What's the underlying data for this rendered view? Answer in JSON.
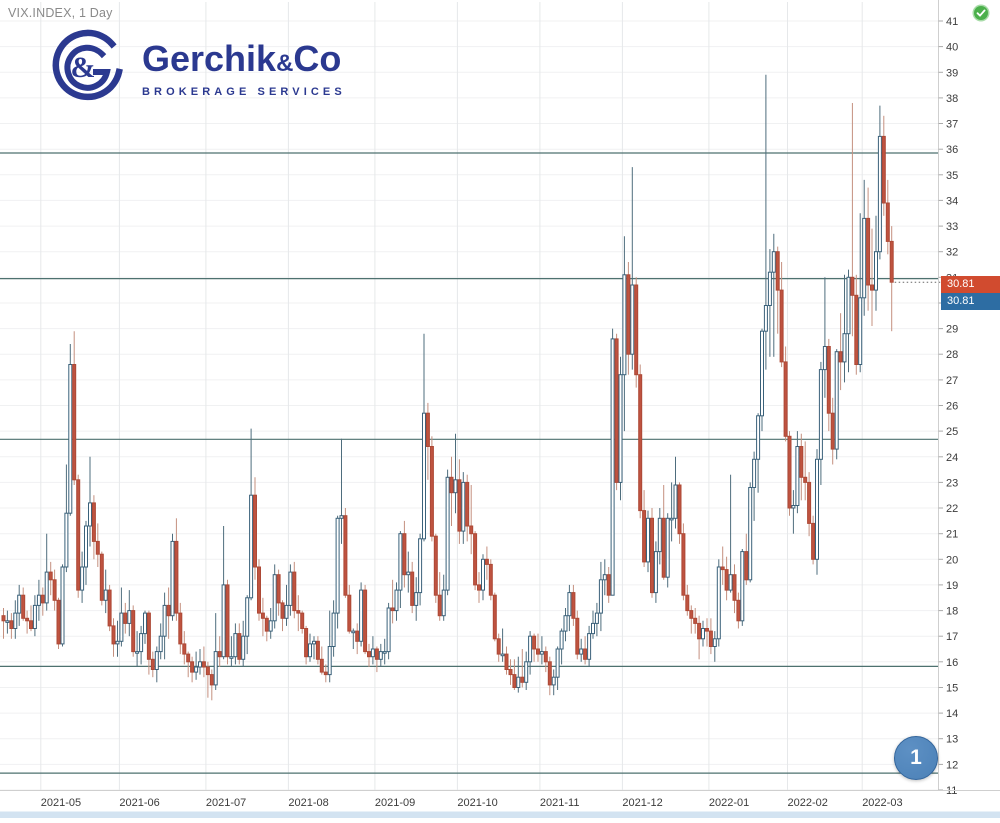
{
  "header": {
    "symbol_title": "VIX.INDEX, 1 Day"
  },
  "logo": {
    "name_main": "Gerchik",
    "name_amp": "&",
    "name_co": "Co",
    "subtitle": "BROKERAGE SERVICES",
    "color": "#2b3990"
  },
  "status": {
    "icon": "check-circle",
    "bg": "#4bb04b",
    "ring": "#a9dca9"
  },
  "marker": {
    "label": "1",
    "bg": "#4c81b7",
    "border": "#33659b"
  },
  "price_labels": {
    "upper": {
      "value": "30.81",
      "bg": "#d14b2f"
    },
    "lower": {
      "value": "30.81",
      "bg": "#2d6da3"
    }
  },
  "colors": {
    "grid_h": "#f0f1f2",
    "grid_v": "#e6e8ea",
    "level_line": "#4d716f",
    "bear_fill": "#bf5340",
    "bear_stroke": "#ad4936",
    "bear_wick": "#c4907f",
    "bull_fill": "#ffffff",
    "bull_stroke": "#3a617a",
    "bull_wick": "#4e6d7d",
    "axis_text": "#3c3c3c",
    "separator": "#cfcfcf",
    "dotted_line": "#666666",
    "bottom_strip": "#d3e3f1"
  },
  "chart_data": {
    "type": "candlestick",
    "symbol": "VIX.INDEX",
    "timeframe": "1 Day",
    "last_price": 30.81,
    "y_axis": {
      "min": 11,
      "max": 41,
      "step": 1
    },
    "x_labels": [
      "2021-05",
      "2021-06",
      "2021-07",
      "2021-08",
      "2021-09",
      "2021-10",
      "2021-11",
      "2021-12",
      "2022-01",
      "2022-02",
      "2022-03"
    ],
    "month_start_indices": [
      10,
      30,
      52,
      73,
      95,
      116,
      137,
      158,
      180,
      200,
      219
    ],
    "levels": [
      35.85,
      30.95,
      24.68,
      15.82,
      11.66
    ],
    "candles": [
      [
        17.8,
        18.1,
        16.9,
        17.6
      ],
      [
        17.6,
        18.0,
        17.1,
        17.6
      ],
      [
        17.6,
        17.9,
        16.9,
        17.3
      ],
      [
        17.3,
        18.4,
        16.9,
        17.9
      ],
      [
        17.9,
        19.0,
        17.4,
        18.6
      ],
      [
        18.6,
        18.9,
        17.6,
        17.7
      ],
      [
        17.7,
        18.0,
        17.1,
        17.6
      ],
      [
        17.6,
        18.2,
        17.2,
        17.3
      ],
      [
        17.3,
        18.6,
        17.0,
        18.2
      ],
      [
        18.2,
        19.2,
        17.6,
        18.6
      ],
      [
        18.6,
        18.9,
        17.8,
        18.3
      ],
      [
        18.3,
        21.0,
        18.0,
        19.5
      ],
      [
        19.5,
        19.9,
        18.6,
        19.2
      ],
      [
        19.2,
        19.6,
        18.0,
        18.4
      ],
      [
        18.4,
        18.5,
        16.5,
        16.7
      ],
      [
        16.7,
        19.8,
        16.6,
        19.7
      ],
      [
        19.7,
        23.7,
        19.5,
        21.8
      ],
      [
        21.8,
        28.4,
        21.7,
        27.6
      ],
      [
        27.6,
        28.9,
        22.9,
        23.1
      ],
      [
        23.1,
        23.3,
        18.5,
        18.8
      ],
      [
        18.8,
        20.3,
        18.3,
        19.7
      ],
      [
        19.7,
        21.5,
        19.0,
        21.3
      ],
      [
        21.3,
        24.0,
        20.5,
        22.2
      ],
      [
        22.2,
        22.5,
        20.0,
        20.7
      ],
      [
        20.7,
        21.4,
        19.7,
        20.2
      ],
      [
        20.2,
        20.3,
        18.2,
        18.4
      ],
      [
        18.4,
        19.6,
        17.9,
        18.8
      ],
      [
        18.8,
        19.0,
        17.2,
        17.4
      ],
      [
        17.4,
        17.7,
        16.2,
        16.7
      ],
      [
        16.7,
        17.6,
        16.2,
        16.8
      ],
      [
        16.8,
        18.9,
        16.6,
        17.9
      ],
      [
        17.9,
        18.3,
        17.1,
        17.5
      ],
      [
        17.5,
        18.8,
        17.0,
        18.0
      ],
      [
        18.0,
        18.2,
        16.2,
        16.4
      ],
      [
        16.4,
        17.2,
        15.8,
        16.4
      ],
      [
        16.4,
        17.4,
        15.9,
        17.1
      ],
      [
        17.1,
        18.0,
        16.7,
        17.9
      ],
      [
        17.9,
        18.0,
        15.5,
        16.1
      ],
      [
        16.1,
        16.4,
        15.4,
        15.7
      ],
      [
        15.7,
        16.6,
        15.2,
        16.4
      ],
      [
        16.4,
        17.5,
        16.1,
        17.0
      ],
      [
        17.0,
        18.7,
        16.1,
        18.2
      ],
      [
        18.2,
        18.9,
        16.9,
        17.8
      ],
      [
        17.8,
        21.0,
        17.6,
        20.7
      ],
      [
        20.7,
        21.6,
        17.6,
        17.9
      ],
      [
        17.9,
        18.3,
        16.3,
        16.7
      ],
      [
        16.7,
        17.2,
        15.9,
        16.3
      ],
      [
        16.3,
        16.4,
        15.4,
        16.0
      ],
      [
        16.0,
        16.2,
        15.2,
        15.6
      ],
      [
        15.6,
        16.4,
        15.3,
        15.8
      ],
      [
        15.8,
        16.5,
        15.5,
        16.0
      ],
      [
        16.0,
        16.6,
        15.4,
        15.8
      ],
      [
        15.8,
        16.0,
        14.6,
        15.5
      ],
      [
        15.5,
        15.7,
        14.5,
        15.1
      ],
      [
        15.1,
        17.9,
        14.9,
        16.4
      ],
      [
        16.4,
        17.0,
        15.8,
        16.2
      ],
      [
        16.2,
        21.3,
        16.1,
        19.0
      ],
      [
        19.0,
        19.2,
        15.9,
        16.2
      ],
      [
        16.2,
        17.0,
        15.8,
        16.2
      ],
      [
        16.2,
        17.5,
        15.9,
        17.1
      ],
      [
        17.1,
        17.5,
        15.9,
        16.1
      ],
      [
        16.1,
        17.6,
        15.8,
        17.0
      ],
      [
        17.0,
        18.6,
        16.3,
        18.5
      ],
      [
        18.5,
        25.1,
        18.4,
        22.5
      ],
      [
        22.5,
        23.2,
        19.2,
        19.7
      ],
      [
        19.7,
        20.0,
        17.6,
        17.9
      ],
      [
        17.9,
        18.5,
        17.0,
        17.7
      ],
      [
        17.7,
        17.8,
        16.8,
        17.2
      ],
      [
        17.2,
        18.1,
        16.9,
        17.6
      ],
      [
        17.6,
        19.8,
        17.3,
        19.4
      ],
      [
        19.4,
        19.6,
        17.8,
        18.3
      ],
      [
        18.3,
        18.4,
        17.2,
        17.7
      ],
      [
        17.7,
        19.0,
        17.4,
        18.2
      ],
      [
        18.2,
        19.8,
        17.8,
        19.5
      ],
      [
        19.5,
        19.9,
        17.7,
        18.0
      ],
      [
        18.0,
        18.6,
        17.2,
        17.9
      ],
      [
        17.9,
        18.0,
        17.1,
        17.3
      ],
      [
        17.3,
        17.4,
        15.9,
        16.2
      ],
      [
        16.2,
        17.1,
        16.0,
        16.7
      ],
      [
        16.7,
        17.0,
        16.1,
        16.8
      ],
      [
        16.8,
        17.0,
        15.9,
        16.1
      ],
      [
        16.1,
        16.6,
        15.5,
        15.6
      ],
      [
        15.6,
        15.9,
        15.2,
        15.5
      ],
      [
        15.5,
        18.0,
        15.2,
        16.6
      ],
      [
        16.6,
        18.4,
        16.2,
        17.9
      ],
      [
        17.9,
        21.7,
        17.3,
        21.6
      ],
      [
        21.6,
        24.7,
        20.6,
        21.7
      ],
      [
        21.7,
        22.0,
        18.5,
        18.6
      ],
      [
        18.6,
        19.0,
        17.1,
        17.2
      ],
      [
        17.2,
        17.3,
        16.5,
        17.2
      ],
      [
        17.2,
        17.5,
        16.3,
        16.8
      ],
      [
        16.8,
        19.1,
        16.6,
        18.8
      ],
      [
        18.8,
        19.0,
        16.3,
        16.4
      ],
      [
        16.4,
        16.7,
        15.8,
        16.2
      ],
      [
        16.2,
        17.0,
        15.9,
        16.5
      ],
      [
        16.5,
        16.6,
        15.6,
        16.1
      ],
      [
        16.1,
        16.7,
        15.8,
        16.4
      ],
      [
        16.4,
        16.9,
        15.9,
        16.4
      ],
      [
        16.4,
        18.3,
        16.1,
        18.1
      ],
      [
        18.1,
        19.2,
        17.5,
        18.0
      ],
      [
        18.0,
        19.1,
        17.6,
        18.8
      ],
      [
        18.8,
        21.1,
        18.1,
        21.0
      ],
      [
        21.0,
        21.5,
        18.9,
        19.4
      ],
      [
        19.4,
        20.3,
        18.7,
        19.5
      ],
      [
        19.5,
        19.9,
        17.9,
        18.2
      ],
      [
        18.2,
        19.3,
        17.6,
        18.7
      ],
      [
        18.7,
        21.0,
        18.2,
        20.8
      ],
      [
        20.8,
        28.8,
        20.7,
        25.7
      ],
      [
        25.7,
        26.1,
        23.1,
        24.4
      ],
      [
        24.4,
        24.8,
        20.7,
        20.9
      ],
      [
        20.9,
        21.0,
        18.3,
        18.6
      ],
      [
        18.6,
        19.5,
        17.6,
        17.8
      ],
      [
        17.8,
        19.4,
        17.6,
        18.8
      ],
      [
        18.8,
        23.5,
        18.6,
        23.2
      ],
      [
        23.2,
        24.0,
        21.3,
        22.6
      ],
      [
        22.6,
        24.9,
        21.8,
        23.1
      ],
      [
        23.1,
        23.9,
        20.6,
        21.1
      ],
      [
        21.1,
        23.4,
        20.6,
        23.0
      ],
      [
        23.0,
        23.3,
        20.7,
        21.3
      ],
      [
        21.3,
        22.9,
        20.2,
        21.0
      ],
      [
        21.0,
        21.1,
        18.8,
        19.0
      ],
      [
        19.0,
        19.5,
        18.3,
        18.8
      ],
      [
        18.8,
        20.2,
        18.4,
        20.0
      ],
      [
        20.0,
        20.5,
        19.2,
        19.8
      ],
      [
        19.8,
        20.0,
        18.4,
        18.6
      ],
      [
        18.6,
        18.7,
        16.8,
        16.9
      ],
      [
        16.9,
        17.1,
        16.0,
        16.3
      ],
      [
        16.3,
        17.3,
        16.0,
        16.3
      ],
      [
        16.3,
        16.6,
        15.5,
        15.7
      ],
      [
        15.7,
        16.1,
        15.1,
        15.5
      ],
      [
        15.5,
        16.1,
        14.9,
        15.0
      ],
      [
        15.0,
        16.2,
        14.8,
        15.4
      ],
      [
        15.4,
        16.5,
        15.0,
        15.2
      ],
      [
        15.2,
        16.4,
        14.9,
        16.0
      ],
      [
        16.0,
        17.2,
        15.5,
        17.0
      ],
      [
        17.0,
        17.1,
        16.0,
        16.5
      ],
      [
        16.5,
        17.1,
        16.0,
        16.3
      ],
      [
        16.3,
        17.0,
        15.9,
        16.4
      ],
      [
        16.4,
        16.6,
        15.6,
        16.0
      ],
      [
        16.0,
        16.2,
        14.7,
        15.1
      ],
      [
        15.1,
        15.7,
        14.7,
        15.4
      ],
      [
        15.4,
        16.6,
        14.9,
        16.5
      ],
      [
        16.5,
        17.3,
        15.9,
        17.2
      ],
      [
        17.2,
        18.1,
        16.8,
        17.8
      ],
      [
        17.8,
        19.0,
        17.2,
        18.7
      ],
      [
        18.7,
        19.0,
        17.4,
        17.7
      ],
      [
        17.7,
        18.0,
        16.1,
        16.3
      ],
      [
        16.3,
        16.9,
        16.0,
        16.5
      ],
      [
        16.5,
        17.0,
        15.9,
        16.1
      ],
      [
        16.1,
        17.4,
        15.8,
        17.1
      ],
      [
        17.1,
        18.0,
        16.9,
        17.5
      ],
      [
        17.5,
        18.3,
        17.0,
        17.9
      ],
      [
        17.9,
        19.9,
        17.2,
        19.2
      ],
      [
        19.2,
        20.0,
        18.6,
        19.4
      ],
      [
        19.4,
        19.7,
        18.3,
        18.6
      ],
      [
        18.6,
        29.0,
        18.6,
        28.6
      ],
      [
        28.6,
        28.8,
        22.7,
        23.0
      ],
      [
        23.0,
        27.9,
        22.3,
        27.2
      ],
      [
        27.2,
        32.6,
        25.0,
        31.1
      ],
      [
        31.1,
        31.6,
        27.2,
        28.0
      ],
      [
        28.0,
        35.3,
        27.4,
        30.7
      ],
      [
        30.7,
        31.0,
        26.7,
        27.2
      ],
      [
        27.2,
        27.6,
        21.6,
        21.9
      ],
      [
        21.9,
        22.7,
        19.7,
        19.9
      ],
      [
        19.9,
        21.9,
        19.5,
        21.6
      ],
      [
        21.6,
        22.0,
        18.5,
        18.7
      ],
      [
        18.7,
        20.7,
        18.3,
        20.3
      ],
      [
        20.3,
        22.0,
        19.8,
        21.6
      ],
      [
        21.6,
        22.9,
        19.2,
        19.3
      ],
      [
        19.3,
        21.8,
        18.9,
        21.6
      ],
      [
        21.6,
        23.0,
        20.7,
        21.6
      ],
      [
        21.6,
        24.0,
        21.2,
        22.9
      ],
      [
        22.9,
        23.0,
        20.6,
        21.0
      ],
      [
        21.0,
        21.4,
        18.4,
        18.6
      ],
      [
        18.6,
        19.0,
        17.8,
        18.0
      ],
      [
        18.0,
        18.2,
        17.1,
        17.7
      ],
      [
        17.7,
        18.1,
        17.1,
        17.5
      ],
      [
        17.5,
        17.8,
        16.1,
        16.9
      ],
      [
        16.9,
        17.6,
        16.6,
        17.3
      ],
      [
        17.3,
        17.7,
        16.6,
        17.2
      ],
      [
        17.2,
        17.7,
        16.3,
        16.6
      ],
      [
        16.6,
        17.2,
        16.0,
        16.9
      ],
      [
        16.9,
        20.0,
        16.6,
        19.7
      ],
      [
        19.7,
        20.5,
        19.0,
        19.6
      ],
      [
        19.6,
        20.1,
        18.4,
        18.8
      ],
      [
        18.8,
        23.3,
        18.7,
        19.4
      ],
      [
        19.4,
        19.8,
        17.9,
        18.4
      ],
      [
        18.4,
        18.7,
        17.3,
        17.6
      ],
      [
        17.6,
        20.4,
        17.4,
        20.3
      ],
      [
        20.3,
        21.0,
        19.0,
        19.2
      ],
      [
        19.2,
        23.0,
        19.1,
        22.8
      ],
      [
        22.8,
        24.2,
        21.5,
        23.9
      ],
      [
        23.9,
        25.7,
        22.6,
        25.6
      ],
      [
        25.6,
        29.0,
        25.0,
        28.9
      ],
      [
        28.9,
        38.9,
        27.4,
        29.9
      ],
      [
        29.9,
        32.1,
        27.9,
        31.2
      ],
      [
        31.2,
        32.7,
        27.9,
        32.0
      ],
      [
        32.0,
        32.2,
        28.8,
        30.5
      ],
      [
        30.5,
        31.6,
        27.5,
        27.7
      ],
      [
        27.7,
        28.3,
        24.6,
        24.8
      ],
      [
        24.8,
        25.0,
        21.7,
        22.0
      ],
      [
        22.0,
        22.7,
        21.0,
        22.1
      ],
      [
        22.1,
        25.0,
        21.8,
        24.4
      ],
      [
        24.4,
        24.9,
        22.3,
        23.2
      ],
      [
        23.2,
        24.6,
        22.3,
        23.0
      ],
      [
        23.0,
        23.4,
        20.9,
        21.4
      ],
      [
        21.4,
        21.7,
        19.8,
        20.0
      ],
      [
        20.0,
        24.3,
        19.4,
        23.9
      ],
      [
        23.9,
        27.7,
        22.9,
        27.4
      ],
      [
        27.4,
        31.0,
        26.3,
        28.3
      ],
      [
        28.3,
        28.6,
        25.0,
        25.7
      ],
      [
        25.7,
        26.3,
        23.7,
        24.3
      ],
      [
        24.3,
        28.2,
        23.9,
        28.1
      ],
      [
        28.1,
        29.6,
        26.6,
        27.7
      ],
      [
        27.7,
        31.1,
        26.9,
        28.8
      ],
      [
        28.8,
        31.3,
        27.3,
        31.0
      ],
      [
        31.0,
        37.8,
        28.7,
        30.3
      ],
      [
        30.3,
        31.1,
        27.2,
        27.6
      ],
      [
        27.6,
        33.5,
        27.3,
        30.2
      ],
      [
        30.2,
        34.8,
        29.5,
        33.3
      ],
      [
        33.3,
        34.5,
        29.7,
        30.7
      ],
      [
        30.7,
        32.9,
        29.1,
        30.5
      ],
      [
        30.5,
        33.4,
        29.7,
        32.0
      ],
      [
        32.0,
        37.7,
        31.7,
        36.5
      ],
      [
        36.5,
        37.3,
        33.4,
        33.9
      ],
      [
        33.9,
        34.8,
        31.9,
        32.4
      ],
      [
        32.4,
        33.0,
        28.9,
        30.81
      ]
    ]
  }
}
